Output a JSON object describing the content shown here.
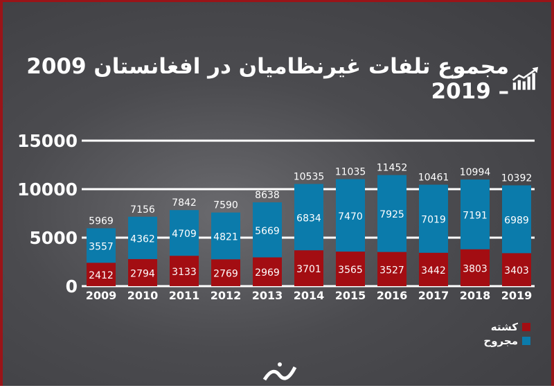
{
  "title": "مجموع تلفات غیرنظامیان در افغانستان 2009 – 2019",
  "chart_data": {
    "type": "bar",
    "stacked": true,
    "title": "مجموع تلفات غیرنظامیان در افغانستان 2009 – 2019",
    "categories": [
      "2009",
      "2010",
      "2011",
      "2012",
      "2013",
      "2014",
      "2015",
      "2016",
      "2017",
      "2018",
      "2019"
    ],
    "series": [
      {
        "name": "کشته",
        "color": "#a30d12",
        "values": [
          2412,
          2794,
          3133,
          2769,
          2969,
          3701,
          3565,
          3527,
          3442,
          3803,
          3403
        ]
      },
      {
        "name": "مجروح",
        "color": "#0b7bab",
        "values": [
          3557,
          4362,
          4709,
          4821,
          5669,
          6834,
          7470,
          7925,
          7019,
          7191,
          6989
        ]
      }
    ],
    "totals": [
      5969,
      7156,
      7842,
      7590,
      8638,
      10535,
      11035,
      11452,
      10461,
      10994,
      10392
    ],
    "yticks": [
      "0",
      "5000",
      "10000",
      "15000"
    ],
    "ylim": [
      0,
      15000
    ],
    "grid": true,
    "legend": "bottom-right"
  }
}
